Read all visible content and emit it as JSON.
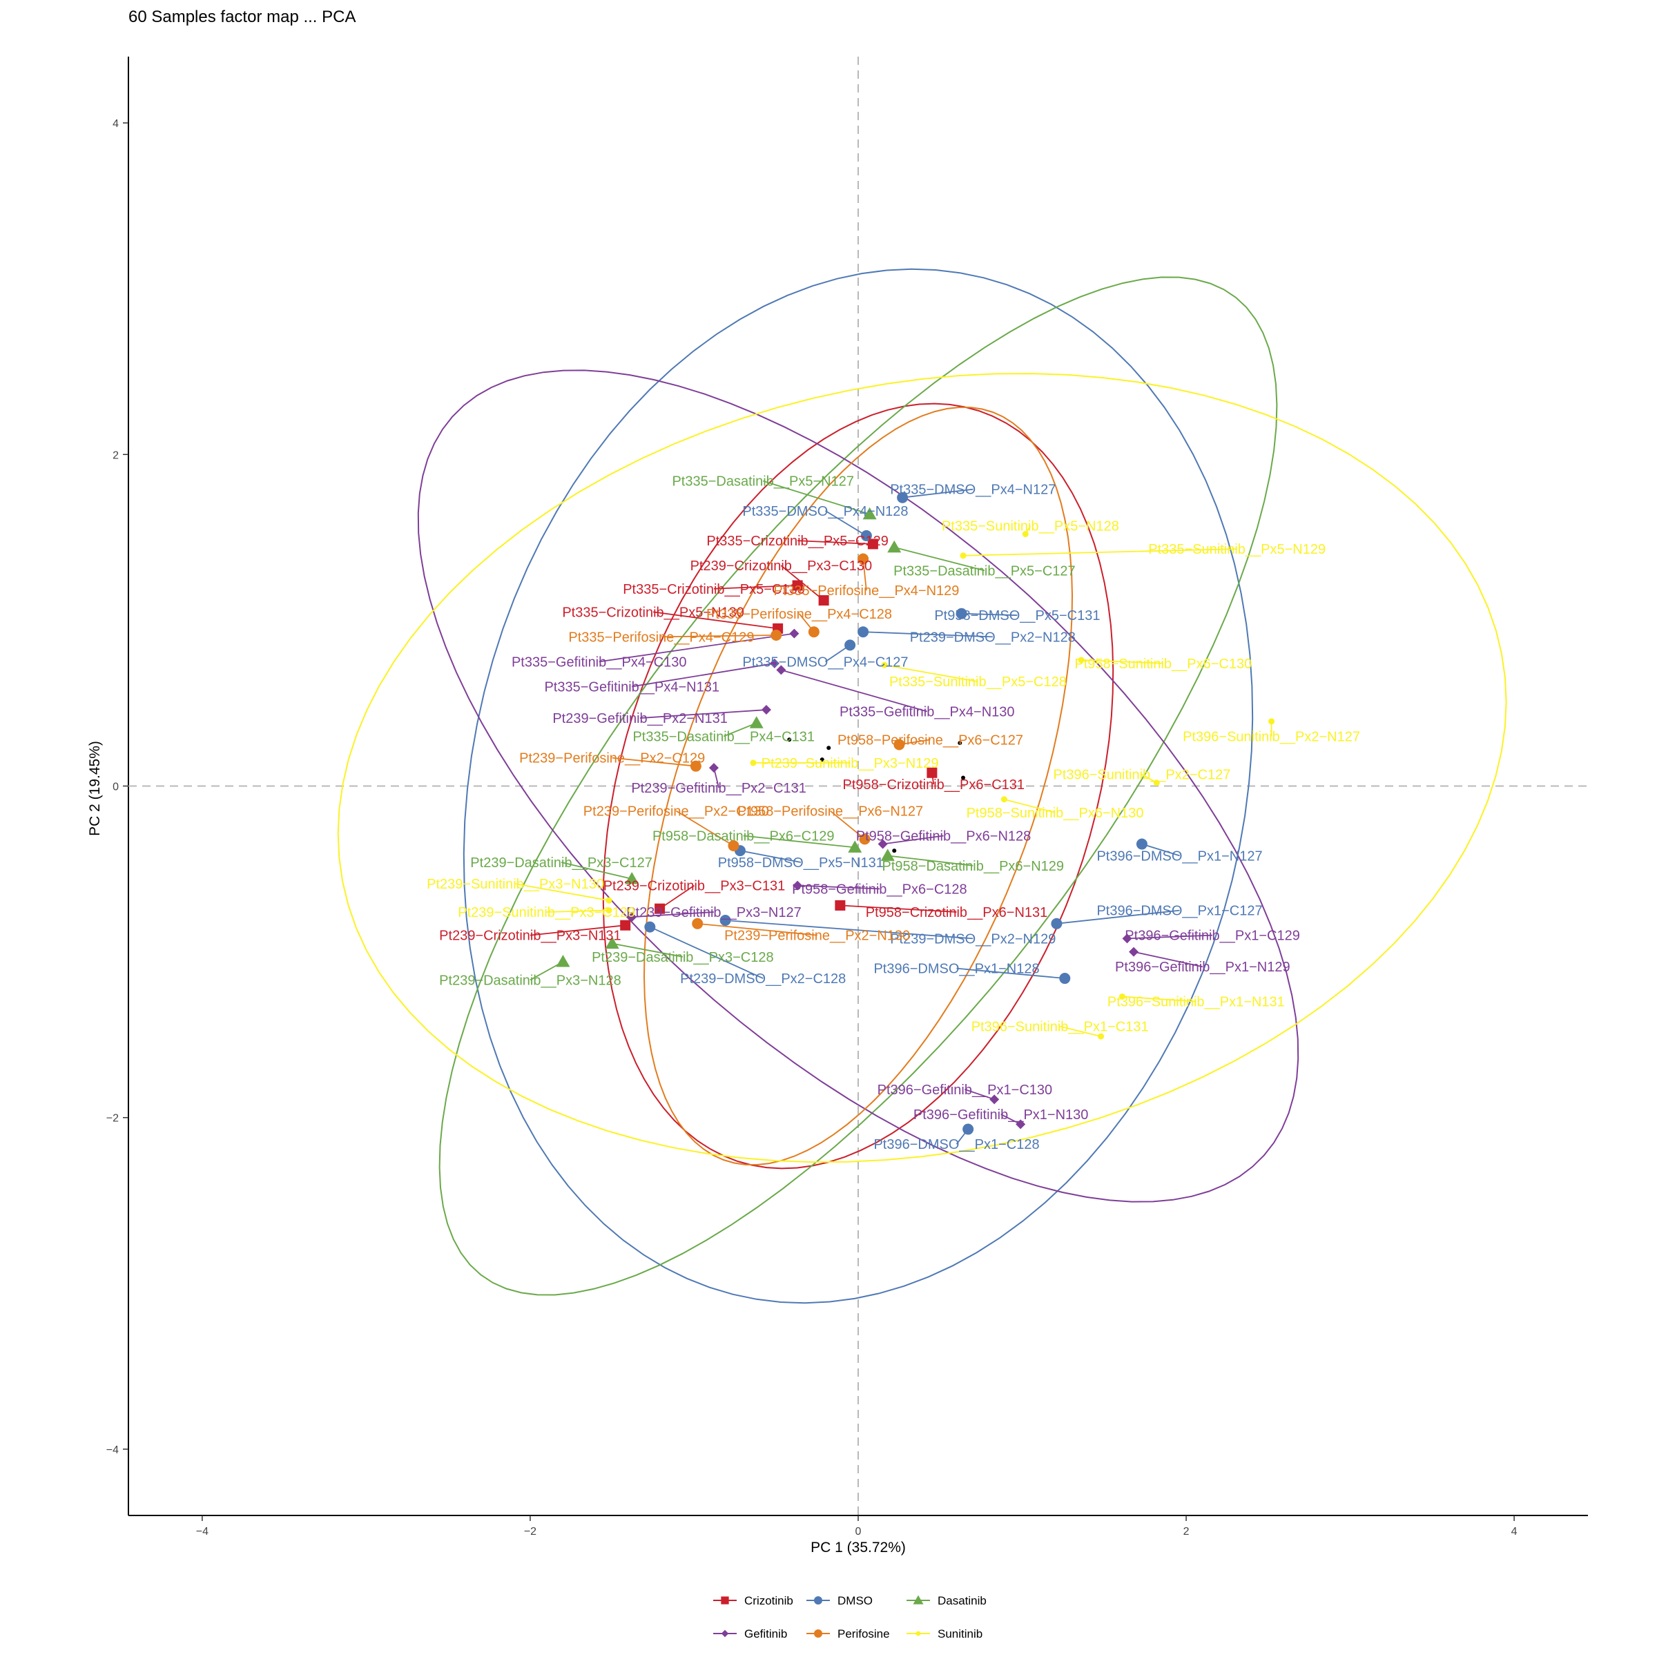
{
  "chart_data": {
    "type": "scatter",
    "title": "60 Samples factor map ... PCA",
    "xlabel": "PC 1 (35.72%)",
    "ylabel": "PC 2 (19.45%)",
    "xlim": [
      -4.45,
      4.45
    ],
    "ylim": [
      -4.4,
      4.4
    ],
    "xticks": [
      -4,
      -2,
      0,
      2,
      4
    ],
    "yticks": [
      -4,
      -2,
      0,
      2,
      4
    ],
    "xtick_labels": [
      "−4",
      "−2",
      "0",
      "2",
      "4"
    ],
    "ytick_labels": [
      "−4",
      "−2",
      "0",
      "2",
      "4"
    ],
    "grid": false,
    "reference_lines": [
      0,
      0
    ],
    "legend_position": "bottom",
    "series": [
      {
        "name": "Crizotinib",
        "color": "#cb1f2b",
        "shape": "square",
        "ellipse": {
          "cx": 0.0,
          "cy": 0.0,
          "a": 2.38,
          "b": 1.44,
          "angle": 72
        },
        "centroid": [
          -0.42,
          0.28
        ],
        "points": [
          {
            "label": "Pt335−Crizotinib__Px5−C129",
            "x": 0.09,
            "y": 1.46,
            "lx": -0.37,
            "ly": 1.48
          },
          {
            "label": "Pt239−Crizotinib__Px3−C130",
            "x": -0.21,
            "y": 1.12,
            "lx": -0.47,
            "ly": 1.33
          },
          {
            "label": "Pt335−Crizotinib__Px5−C130",
            "x": -0.37,
            "y": 1.21,
            "lx": -0.88,
            "ly": 1.19
          },
          {
            "label": "Pt335−Crizotinib__Px5−N130",
            "x": -0.49,
            "y": 0.95,
            "lx": -1.25,
            "ly": 1.05
          },
          {
            "label": "Pt958−Crizotinib__Px6−C131",
            "x": 0.45,
            "y": 0.08,
            "lx": 0.46,
            "ly": 0.01
          },
          {
            "label": "Pt239−Crizotinib__Px3−C131",
            "x": -1.21,
            "y": -0.74,
            "lx": -1.0,
            "ly": -0.6
          },
          {
            "label": "Pt958−Crizotinib__Px6−N131",
            "x": -0.11,
            "y": -0.72,
            "lx": 0.6,
            "ly": -0.76
          },
          {
            "label": "Pt239−Crizotinib__Px3−N131",
            "x": -1.42,
            "y": -0.84,
            "lx": -2.0,
            "ly": -0.9
          }
        ]
      },
      {
        "name": "DMSO",
        "color": "#4f79b4",
        "shape": "circle",
        "ellipse": {
          "cx": 0.0,
          "cy": 0.0,
          "a": 3.16,
          "b": 2.35,
          "angle": 76
        },
        "centroid": [
          0.62,
          0.26
        ],
        "points": [
          {
            "label": "Pt335−DMSO__Px4−N127",
            "x": 0.27,
            "y": 1.74,
            "lx": 0.7,
            "ly": 1.79
          },
          {
            "label": "Pt335−DMSO__Px4−N128",
            "x": 0.05,
            "y": 1.51,
            "lx": -0.2,
            "ly": 1.66
          },
          {
            "label": "Pt958−DMSO__Px5−C131",
            "x": 0.63,
            "y": 1.04,
            "lx": 0.97,
            "ly": 1.03
          },
          {
            "label": "Pt239−DMSO__Px2−N128",
            "x": 0.03,
            "y": 0.93,
            "lx": 0.82,
            "ly": 0.9
          },
          {
            "label": "Pt335−DMSO__Px4−C127",
            "x": -0.05,
            "y": 0.85,
            "lx": -0.2,
            "ly": 0.75
          },
          {
            "label": "Pt396−DMSO__Px1−N127",
            "x": 1.73,
            "y": -0.35,
            "lx": 1.96,
            "ly": -0.42
          },
          {
            "label": "Pt958−DMSO__Px5−N131",
            "x": -0.72,
            "y": -0.39,
            "lx": -0.35,
            "ly": -0.46
          },
          {
            "label": "Pt396−DMSO__Px1−C127",
            "x": 1.21,
            "y": -0.83,
            "lx": 1.96,
            "ly": -0.75
          },
          {
            "label": "Pt239−DMSO__Px2−N129",
            "x": -0.81,
            "y": -0.81,
            "lx": 0.7,
            "ly": -0.92
          },
          {
            "label": "Pt239−DMSO__Px2−C128",
            "x": -1.27,
            "y": -0.85,
            "lx": -0.58,
            "ly": -1.16
          },
          {
            "label": "Pt396−DMSO__Px1−N128",
            "x": 1.26,
            "y": -1.16,
            "lx": 0.6,
            "ly": -1.1
          },
          {
            "label": "Pt396−DMSO__Px1−C128",
            "x": 0.67,
            "y": -2.07,
            "lx": 0.6,
            "ly": -2.16
          }
        ]
      },
      {
        "name": "Dasatinib",
        "color": "#6aa94a",
        "shape": "triangle",
        "ellipse": {
          "cx": 0.0,
          "cy": 0.0,
          "a": 3.74,
          "b": 1.4,
          "angle": 52
        },
        "centroid": [
          -0.22,
          0.16
        ],
        "points": [
          {
            "label": "Pt335−Dasatinib__Px5−N127",
            "x": 0.07,
            "y": 1.64,
            "lx": -0.58,
            "ly": 1.84
          },
          {
            "label": "Pt335−Dasatinib__Px5−C127",
            "x": 0.22,
            "y": 1.44,
            "lx": 0.77,
            "ly": 1.3
          },
          {
            "label": "Pt335−Dasatinib__Px4−C131",
            "x": -0.62,
            "y": 0.38,
            "lx": -0.82,
            "ly": 0.3
          },
          {
            "label": "Pt958−Dasatinib__Px6−C129",
            "x": -0.02,
            "y": -0.37,
            "lx": -0.7,
            "ly": -0.3
          },
          {
            "label": "Pt958−Dasatinib__Px6−N129",
            "x": 0.18,
            "y": -0.42,
            "lx": 0.7,
            "ly": -0.48
          },
          {
            "label": "Pt239−Dasatinib__Px3−C127",
            "x": -1.38,
            "y": -0.56,
            "lx": -1.81,
            "ly": -0.46
          },
          {
            "label": "Pt239−Dasatinib__Px3−C128",
            "x": -1.5,
            "y": -0.95,
            "lx": -1.07,
            "ly": -1.03
          },
          {
            "label": "Pt239−Dasatinib__Px3−N128",
            "x": -1.8,
            "y": -1.06,
            "lx": -2.0,
            "ly": -1.17
          }
        ]
      },
      {
        "name": "Gefitinib",
        "color": "#7f3e98",
        "shape": "diamond",
        "ellipse": {
          "cx": 0.0,
          "cy": 0.0,
          "a": 3.33,
          "b": 1.55,
          "angle": -42
        },
        "centroid": [
          0.22,
          -0.39
        ],
        "points": [
          {
            "label": "Pt335−Gefitinib__Px4−C130",
            "x": -0.39,
            "y": 0.92,
            "lx": -1.58,
            "ly": 0.75
          },
          {
            "label": "Pt335−Gefitinib__Px4−N131",
            "x": -0.51,
            "y": 0.74,
            "lx": -1.38,
            "ly": 0.6
          },
          {
            "label": "Pt335−Gefitinib__Px4−N130",
            "x": -0.47,
            "y": 0.7,
            "lx": 0.42,
            "ly": 0.45
          },
          {
            "label": "Pt239−Gefitinib__Px2−N131",
            "x": -0.56,
            "y": 0.46,
            "lx": -1.33,
            "ly": 0.41
          },
          {
            "label": "Pt239−Gefitinib__Px2−C131",
            "x": -0.88,
            "y": 0.11,
            "lx": -0.85,
            "ly": -0.01
          },
          {
            "label": "Pt958−Gefitinib__Px6−N128",
            "x": 0.15,
            "y": -0.35,
            "lx": 0.52,
            "ly": -0.3
          },
          {
            "label": "Pt958−Gefitinib__Px6−C128",
            "x": -0.37,
            "y": -0.6,
            "lx": 0.13,
            "ly": -0.62
          },
          {
            "label": "Pt239−Gefitinib__Px3−N127",
            "x": -1.38,
            "y": -0.79,
            "lx": -0.88,
            "ly": -0.76
          },
          {
            "label": "Pt396−Gefitinib__Px1−C129",
            "x": 1.64,
            "y": -0.92,
            "lx": 2.16,
            "ly": -0.9
          },
          {
            "label": "Pt396−Gefitinib__Px1−N129",
            "x": 1.68,
            "y": -1.0,
            "lx": 2.1,
            "ly": -1.09
          },
          {
            "label": "Pt396−Gefitinib__Px1−C130",
            "x": 0.83,
            "y": -1.89,
            "lx": 0.65,
            "ly": -1.83
          },
          {
            "label": "Pt396−Gefitinib__Px1−N130",
            "x": 0.99,
            "y": -2.04,
            "lx": 0.87,
            "ly": -1.98
          }
        ]
      },
      {
        "name": "Perifosine",
        "color": "#e27c1e",
        "shape": "circle",
        "ellipse": {
          "cx": 0.0,
          "cy": 0.0,
          "a": 2.4,
          "b": 1.08,
          "angle": 70
        },
        "centroid": [
          -0.18,
          0.23
        ],
        "points": [
          {
            "label": "Pt335−Perifosine__Px4−N129",
            "x": 0.03,
            "y": 1.37,
            "lx": 0.05,
            "ly": 1.18
          },
          {
            "label": "Pt335−Perifosine__Px4−C128",
            "x": -0.27,
            "y": 0.93,
            "lx": -0.36,
            "ly": 1.04
          },
          {
            "label": "Pt335−Perifosine__Px4−C129",
            "x": -0.5,
            "y": 0.91,
            "lx": -1.2,
            "ly": 0.9
          },
          {
            "label": "Pt958−Perifosine__Px6−C127",
            "x": 0.25,
            "y": 0.25,
            "lx": 0.44,
            "ly": 0.28
          },
          {
            "label": "Pt239−Perifosine__Px2−C129",
            "x": -0.99,
            "y": 0.12,
            "lx": -1.5,
            "ly": 0.17
          },
          {
            "label": "Pt958−Perifosine__Px6−N127",
            "x": 0.04,
            "y": -0.32,
            "lx": -0.17,
            "ly": -0.15
          },
          {
            "label": "Pt239−Perifosine__Px2−C130",
            "x": -0.76,
            "y": -0.36,
            "lx": -1.11,
            "ly": -0.15
          },
          {
            "label": "Pt239−Perifosine__Px2−N130",
            "x": -0.98,
            "y": -0.83,
            "lx": -0.25,
            "ly": -0.9
          }
        ]
      },
      {
        "name": "Sunitinib",
        "color": "#fbf224",
        "shape": "dot",
        "ellipse": {
          "cx": 0.39,
          "cy": 0.11,
          "a": 3.6,
          "b": 2.32,
          "angle": 11
        },
        "centroid": [
          0.64,
          0.05
        ],
        "points": [
          {
            "label": "Pt335−Sunitinib__Px5−N128",
            "x": 1.02,
            "y": 1.52,
            "lx": 1.05,
            "ly": 1.57
          },
          {
            "label": "Pt335−Sunitinib__Px5−N129",
            "x": 0.64,
            "y": 1.39,
            "lx": 2.31,
            "ly": 1.43
          },
          {
            "label": "Pt958−Sunitinib__Px6−C130",
            "x": 1.36,
            "y": 0.76,
            "lx": 1.86,
            "ly": 0.74
          },
          {
            "label": "Pt335−Sunitinib__Px5−C128",
            "x": 0.16,
            "y": 0.73,
            "lx": 0.73,
            "ly": 0.63
          },
          {
            "label": "Pt396−Sunitinib__Px2−N127",
            "x": 2.52,
            "y": 0.39,
            "lx": 2.52,
            "ly": 0.3
          },
          {
            "label": "Pt239−Sunitinib__Px3−N129",
            "x": -0.64,
            "y": 0.14,
            "lx": -0.05,
            "ly": 0.14
          },
          {
            "label": "Pt396−Sunitinib__Px2−C127",
            "x": 1.82,
            "y": 0.02,
            "lx": 1.73,
            "ly": 0.07
          },
          {
            "label": "Pt958−Sunitinib__Px6−N130",
            "x": 0.89,
            "y": -0.08,
            "lx": 1.2,
            "ly": -0.16
          },
          {
            "label": "Pt239−Sunitinib__Px3−N130",
            "x": -1.52,
            "y": -0.69,
            "lx": -2.09,
            "ly": -0.59
          },
          {
            "label": "Pt239−Sunitinib__Px3−C129",
            "x": -1.52,
            "y": -0.75,
            "lx": -1.9,
            "ly": -0.76
          },
          {
            "label": "Pt396−Sunitinib__Px1−N131",
            "x": 1.61,
            "y": -1.27,
            "lx": 2.06,
            "ly": -1.3
          },
          {
            "label": "Pt396−Sunitinib__Px1−C131",
            "x": 1.48,
            "y": -1.51,
            "lx": 1.23,
            "ly": -1.45
          }
        ]
      }
    ]
  }
}
